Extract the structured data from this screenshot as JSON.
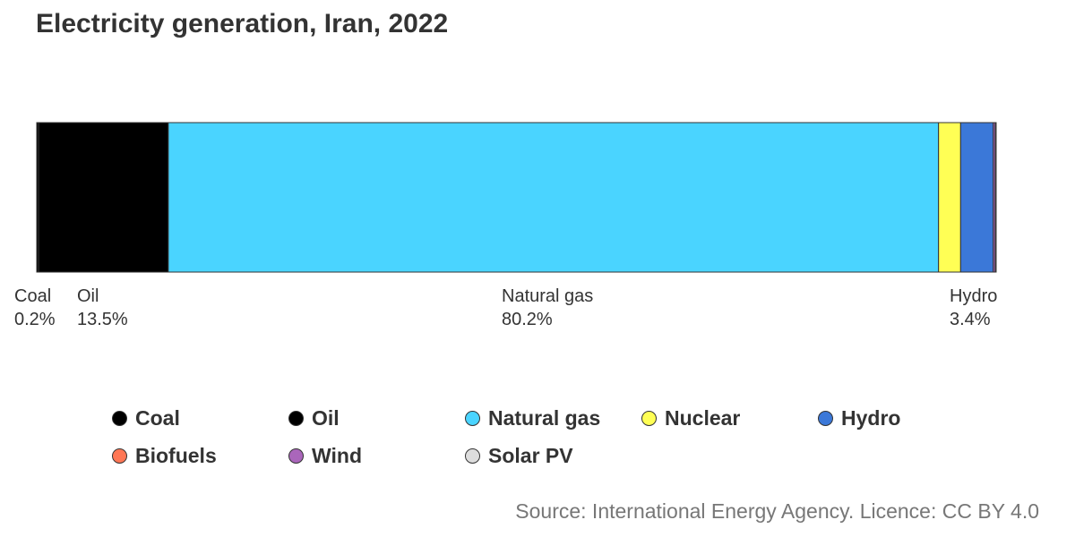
{
  "chart_data": {
    "type": "bar",
    "title": "Electricity generation, Iran, 2022",
    "series": [
      {
        "name": "Coal",
        "value": 0.2,
        "color": "#000000",
        "label": "Coal",
        "pct": "0.2%"
      },
      {
        "name": "Oil",
        "value": 13.5,
        "color": "#000000",
        "label": "Oil",
        "pct": "13.5%"
      },
      {
        "name": "Natural gas",
        "value": 80.2,
        "color": "#4ad4ff",
        "label": "Natural gas",
        "pct": "80.2%"
      },
      {
        "name": "Nuclear",
        "value": 2.3,
        "color": "#ffff55",
        "label": "",
        "pct": ""
      },
      {
        "name": "Hydro",
        "value": 3.4,
        "color": "#3b78d8",
        "label": "Hydro",
        "pct": "3.4%"
      },
      {
        "name": "Biofuels",
        "value": 0.0,
        "color": "#ff7755",
        "label": "",
        "pct": ""
      },
      {
        "name": "Wind",
        "value": 0.2,
        "color": "#aa66bb",
        "label": "",
        "pct": ""
      },
      {
        "name": "Solar PV",
        "value": 0.1,
        "color": "#dddddd",
        "label": "",
        "pct": ""
      }
    ],
    "legend": [
      {
        "name": "Coal",
        "color": "#000000"
      },
      {
        "name": "Oil",
        "color": "#000000"
      },
      {
        "name": "Natural gas",
        "color": "#4ad4ff"
      },
      {
        "name": "Nuclear",
        "color": "#ffff55"
      },
      {
        "name": "Hydro",
        "color": "#3b78d8"
      },
      {
        "name": "Biofuels",
        "color": "#ff7755"
      },
      {
        "name": "Wind",
        "color": "#aa66bb"
      },
      {
        "name": "Solar PV",
        "color": "#dddddd"
      }
    ],
    "legend_placement": "bottom",
    "source": "Source: International Energy Agency. Licence: CC BY 4.0"
  }
}
